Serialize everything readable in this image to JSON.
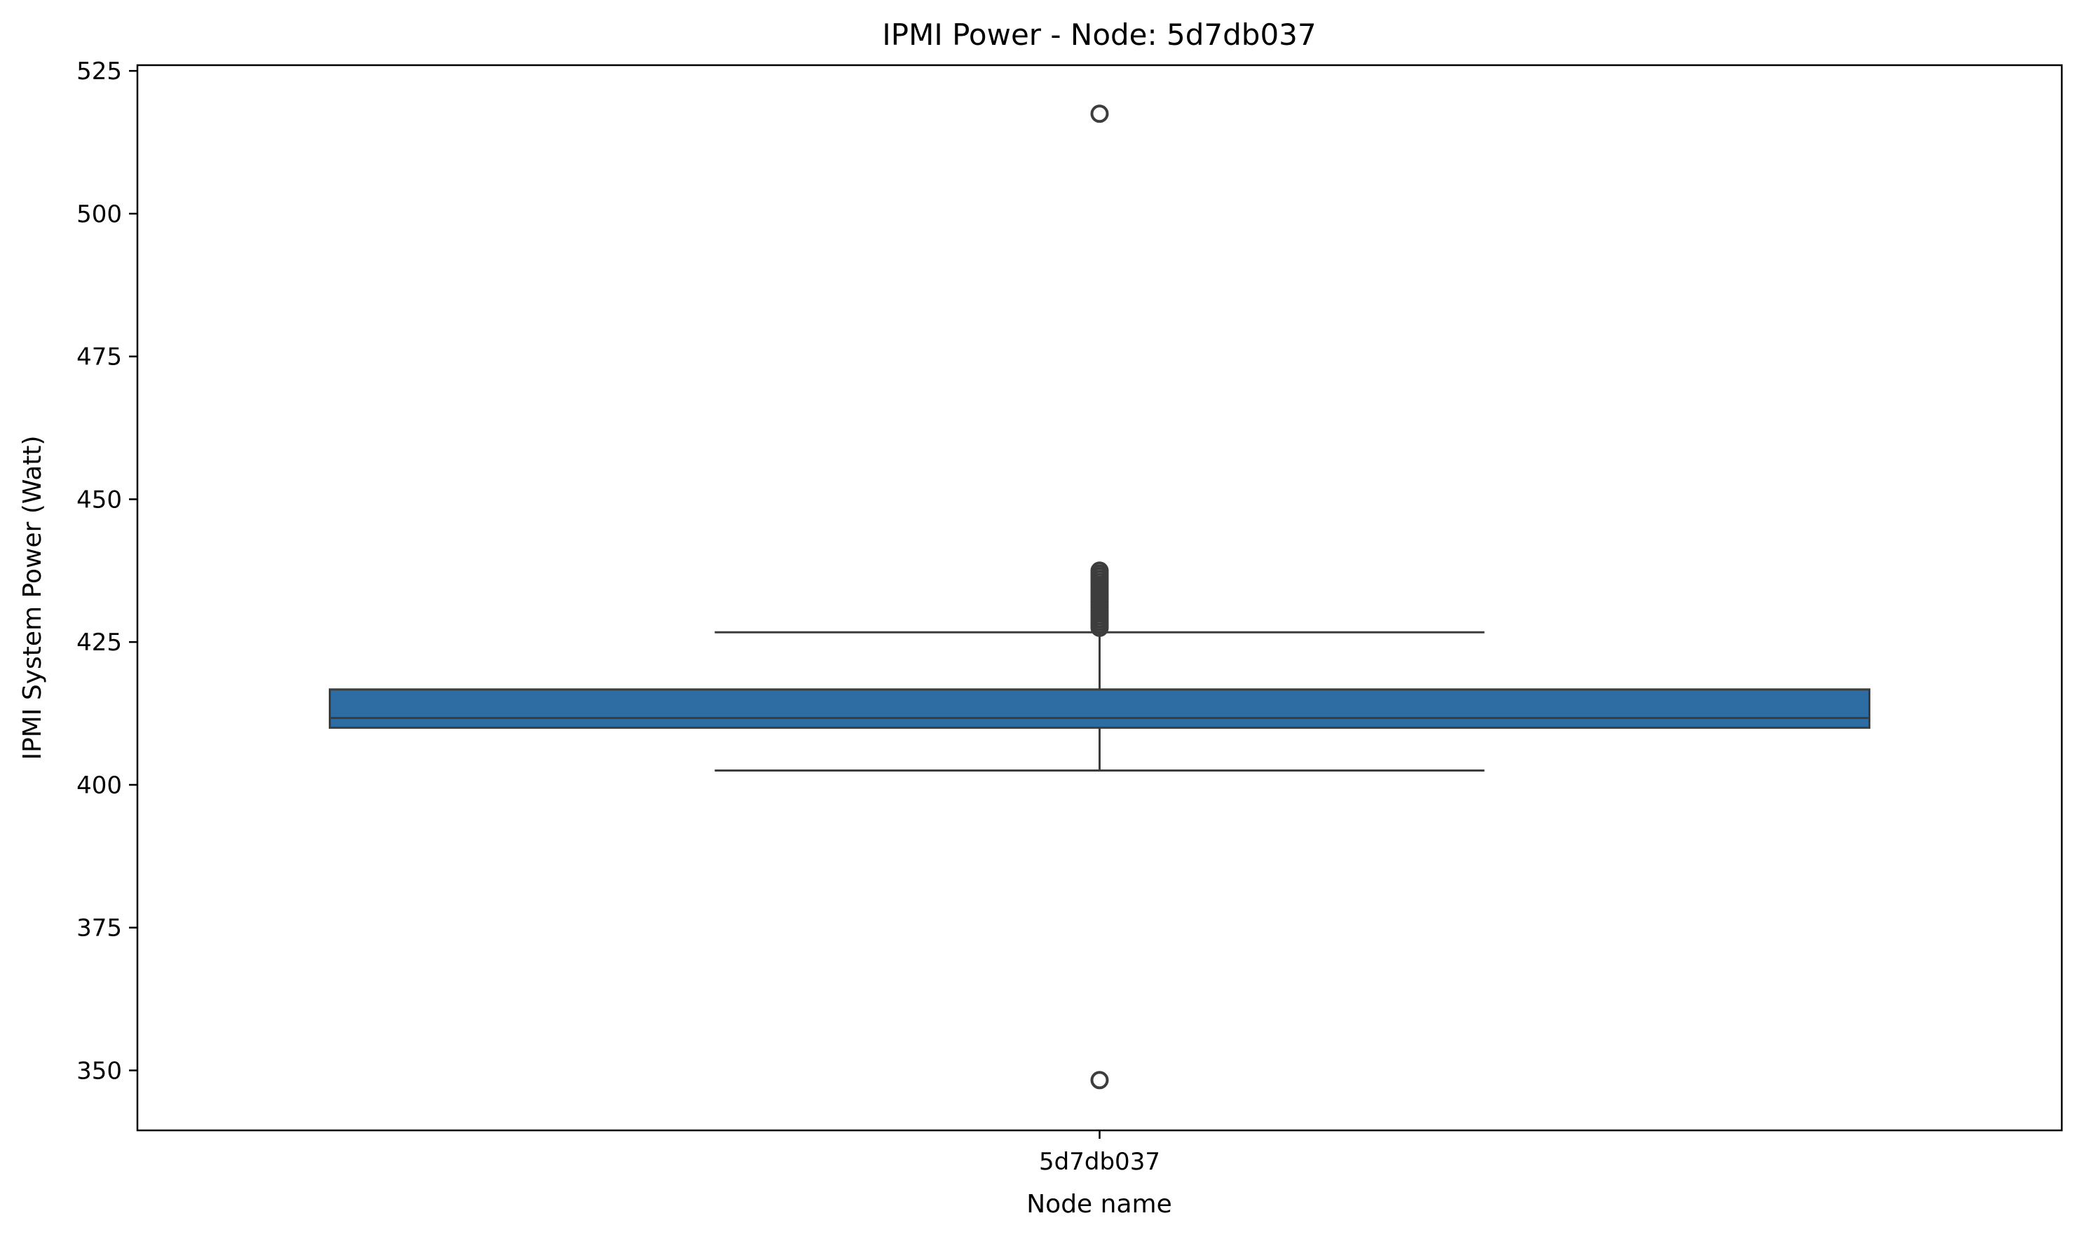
{
  "chart_data": {
    "type": "box",
    "title": "IPMI Power - Node: 5d7db037",
    "xlabel": "Node name",
    "ylabel": "IPMI System Power (Watt)",
    "categories": [
      "5d7db037"
    ],
    "ylim": [
      339.5,
      526.0
    ],
    "yticks": [
      350,
      375,
      400,
      425,
      450,
      475,
      500,
      525
    ],
    "grid": false,
    "legend": "none",
    "series": [
      {
        "category": "5d7db037",
        "whisker_low": 402.5,
        "q1": 410.0,
        "median": 411.7,
        "q3": 416.7,
        "whisker_high": 426.7,
        "outliers": [
          348.3,
          427.5,
          428.0,
          428.5,
          429.0,
          429.5,
          430.0,
          430.5,
          431.0,
          431.5,
          432.0,
          432.5,
          433.0,
          433.5,
          434.0,
          434.5,
          435.0,
          435.5,
          436.0,
          436.5,
          437.0,
          437.5,
          517.5
        ]
      }
    ],
    "colors": {
      "box_fill": "#2e6da4",
      "line": "#3d3d3d",
      "axes": "#000000"
    }
  }
}
